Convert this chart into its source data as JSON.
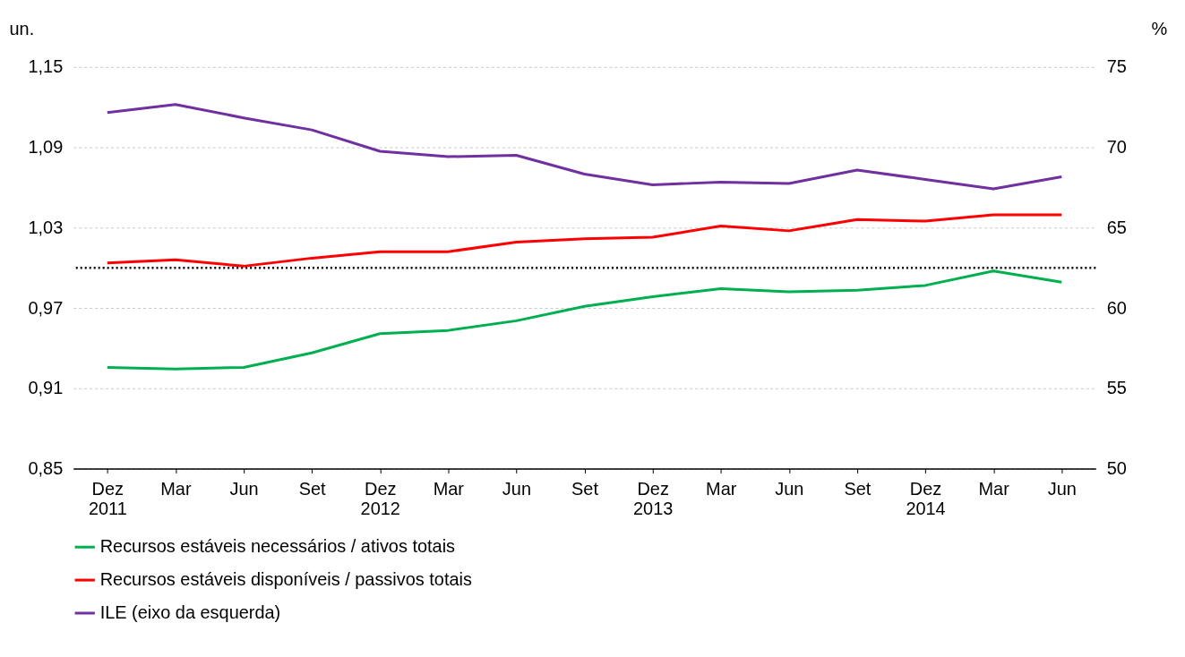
{
  "chart_data": {
    "type": "line",
    "ylabel": "un.",
    "y2label": "%",
    "categories": [
      "Dez\n2011",
      "Mar",
      "Jun",
      "Set",
      "Dez\n2012",
      "Mar",
      "Jun",
      "Set",
      "Dez\n2013",
      "Mar",
      "Jun",
      "Set",
      "Dez\n2014",
      "Mar",
      "Jun"
    ],
    "series": [
      {
        "name": "Recursos estáveis necessários / ativos totais",
        "color": "#00b050",
        "axis": "y2",
        "values": [
          56.3,
          56.2,
          56.3,
          57.2,
          58.4,
          58.6,
          59.2,
          60.1,
          60.7,
          61.2,
          61.0,
          61.1,
          61.4,
          62.3,
          61.6
        ]
      },
      {
        "name": "Recursos estáveis disponíveis / passivos totais",
        "color": "#ff0000",
        "axis": "y2",
        "values": [
          62.8,
          63.0,
          62.6,
          63.1,
          63.5,
          63.5,
          64.1,
          64.3,
          64.4,
          65.1,
          64.8,
          65.5,
          65.4,
          65.8,
          65.8
        ]
      },
      {
        "name": "ILE (eixo da esquerda)",
        "color": "#7030a0",
        "axis": "y",
        "values": [
          1.116,
          1.122,
          1.112,
          1.103,
          1.087,
          1.083,
          1.084,
          1.07,
          1.062,
          1.064,
          1.063,
          1.073,
          1.066,
          1.059,
          1.068
        ]
      }
    ],
    "ylim": [
      0.85,
      1.15
    ],
    "yticks": [
      {
        "value": 0.85,
        "label": "0,85"
      },
      {
        "value": 0.91,
        "label": "0,91"
      },
      {
        "value": 0.97,
        "label": "0,97"
      },
      {
        "value": 1.03,
        "label": "1,03"
      },
      {
        "value": 1.09,
        "label": "1,09"
      },
      {
        "value": 1.15,
        "label": "1,15"
      }
    ],
    "y2lim": [
      50,
      75
    ],
    "y2ticks": [
      50,
      55,
      60,
      65,
      70,
      75
    ],
    "ref_lines": [
      {
        "axis": "y",
        "value": 1.0,
        "color": "#000000",
        "line_style": "dotted"
      }
    ],
    "grid": "y",
    "legend": "bottom",
    "marker": "none",
    "line_style": "solid"
  }
}
